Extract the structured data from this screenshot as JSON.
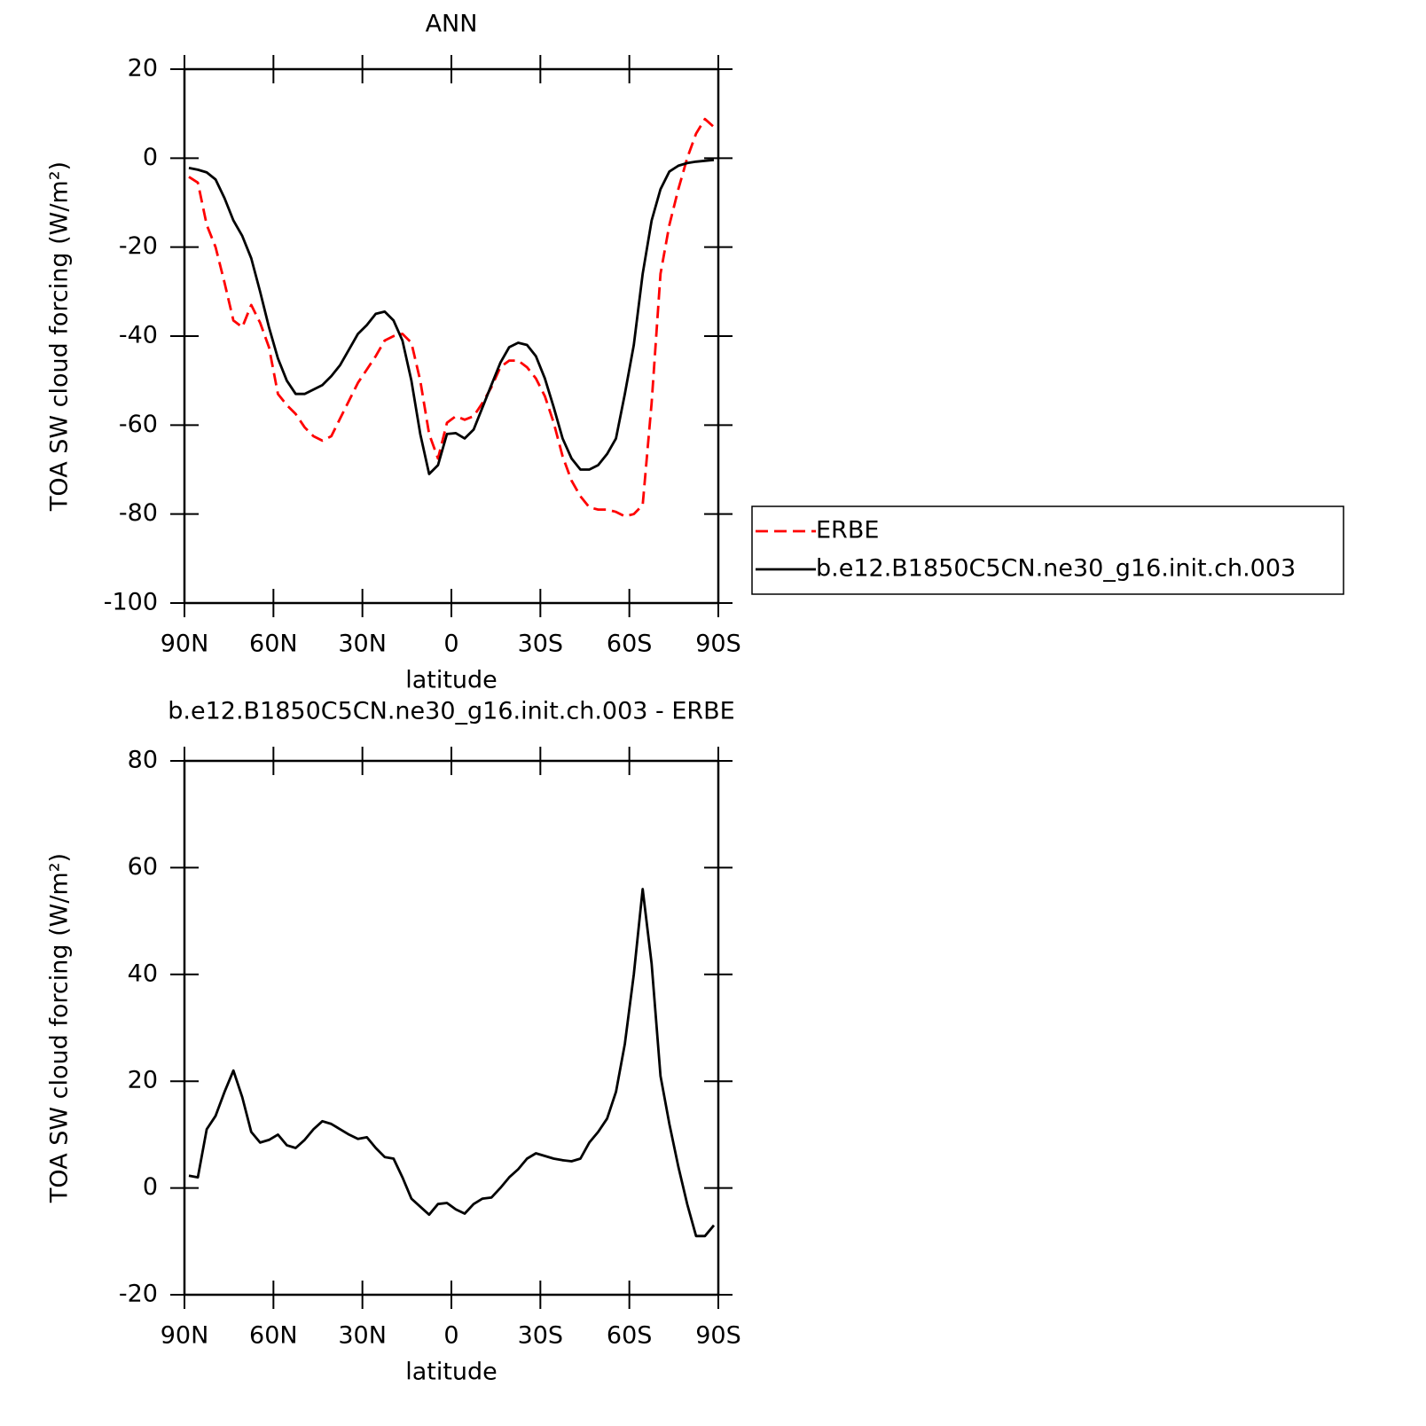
{
  "chart_data": [
    {
      "type": "line",
      "title": "ANN",
      "xlabel": "latitude",
      "ylabel": "TOA SW cloud forcing (W/m²)",
      "x": [
        88.5,
        85.5,
        82.5,
        79.5,
        76.5,
        73.5,
        70.5,
        67.5,
        64.5,
        61.5,
        58.5,
        55.5,
        52.5,
        49.5,
        46.5,
        43.5,
        40.5,
        37.5,
        34.5,
        31.5,
        28.5,
        25.5,
        22.5,
        19.5,
        16.5,
        13.5,
        10.5,
        7.5,
        4.5,
        1.5,
        -1.5,
        -4.5,
        -7.5,
        -10.5,
        -13.5,
        -16.5,
        -19.5,
        -22.5,
        -25.5,
        -28.5,
        -31.5,
        -34.5,
        -37.5,
        -40.5,
        -43.5,
        -46.5,
        -49.5,
        -52.5,
        -55.5,
        -58.5,
        -61.5,
        -64.5,
        -67.5,
        -70.5,
        -73.5,
        -76.5,
        -79.5,
        -82.5,
        -85.5,
        -88.5
      ],
      "series": [
        {
          "name": "ERBE",
          "color": "#ff0000",
          "dash": true,
          "values": [
            -4.2,
            -5.5,
            -15,
            -20,
            -28,
            -36.5,
            -38,
            -33,
            -37,
            -42.5,
            -53,
            -55.5,
            -57.5,
            -60.5,
            -62.5,
            -63.5,
            -62.5,
            -58.5,
            -54.5,
            -50.5,
            -47.5,
            -44.5,
            -41,
            -40,
            -39.5,
            -41.5,
            -50,
            -62,
            -67.5,
            -59.5,
            -58,
            -58.8,
            -58,
            -55,
            -51.5,
            -47,
            -45.5,
            -45.5,
            -47,
            -49.5,
            -53.5,
            -59.5,
            -67,
            -72.5,
            -76,
            -78.5,
            -79,
            -79,
            -79.5,
            -80.5,
            -80,
            -78,
            -55,
            -26,
            -15,
            -7,
            0,
            5.5,
            8.8,
            7
          ]
        },
        {
          "name": "b.e12.B1850C5CN.ne30_g16.init.ch.003",
          "color": "#000000",
          "dash": false,
          "values": [
            -2.2,
            -2.6,
            -3.2,
            -4.8,
            -9,
            -14,
            -17.5,
            -22.5,
            -30,
            -38,
            -45,
            -50,
            -53,
            -53,
            -52,
            -51,
            -49,
            -46.5,
            -43,
            -39.5,
            -37.5,
            -35,
            -34.5,
            -36.5,
            -41,
            -50,
            -62,
            -71,
            -69,
            -62,
            -61.8,
            -63,
            -61,
            -56,
            -51,
            -46,
            -42.5,
            -41.5,
            -42,
            -44.5,
            -49.5,
            -56,
            -63,
            -67.5,
            -70,
            -70,
            -69,
            -66.5,
            -63,
            -53,
            -42,
            -26,
            -14,
            -7,
            -3,
            -1.7,
            -1.1,
            -0.8,
            -0.6,
            -0.4
          ]
        }
      ],
      "xlim": [
        90,
        -90
      ],
      "xticks": [
        {
          "value": 90,
          "label": "90N"
        },
        {
          "value": 60,
          "label": "60N"
        },
        {
          "value": 30,
          "label": "30N"
        },
        0,
        {
          "value": -30,
          "label": "30S"
        },
        {
          "value": -60,
          "label": "60S"
        },
        {
          "value": -90,
          "label": "90S"
        }
      ],
      "ylim": [
        -100,
        20
      ],
      "yticks": [
        -100,
        -80,
        -60,
        -40,
        -20,
        0,
        20
      ],
      "legend": "right"
    },
    {
      "type": "line",
      "title": "b.e12.B1850C5CN.ne30_g16.init.ch.003 - ERBE",
      "xlabel": "latitude",
      "ylabel": "TOA SW cloud forcing (W/m²)",
      "x": [
        88.5,
        85.5,
        82.5,
        79.5,
        76.5,
        73.5,
        70.5,
        67.5,
        64.5,
        61.5,
        58.5,
        55.5,
        52.5,
        49.5,
        46.5,
        43.5,
        40.5,
        37.5,
        34.5,
        31.5,
        28.5,
        25.5,
        22.5,
        19.5,
        16.5,
        13.5,
        10.5,
        7.5,
        4.5,
        1.5,
        -1.5,
        -4.5,
        -7.5,
        -10.5,
        -13.5,
        -16.5,
        -19.5,
        -22.5,
        -25.5,
        -28.5,
        -31.5,
        -34.5,
        -37.5,
        -40.5,
        -43.5,
        -46.5,
        -49.5,
        -52.5,
        -55.5,
        -58.5,
        -61.5,
        -64.5,
        -67.5,
        -70.5,
        -73.5,
        -76.5,
        -79.5,
        -82.5,
        -85.5,
        -88.5
      ],
      "series": [
        {
          "color": "#000000",
          "dash": false,
          "values": [
            2.3,
            2,
            11,
            13.5,
            18,
            22,
            17,
            10.5,
            8.5,
            9,
            10,
            8,
            7.5,
            9,
            11,
            12.5,
            12,
            11,
            10,
            9.2,
            9.5,
            7.5,
            5.8,
            5.5,
            2,
            -2,
            -3.5,
            -5,
            -3,
            -2.8,
            -4,
            -4.8,
            -3,
            -2,
            -1.8,
            0,
            2,
            3.5,
            5.5,
            6.5,
            6,
            5.5,
            5.2,
            5,
            5.5,
            8.5,
            10.5,
            13,
            18,
            27,
            40,
            56,
            42,
            21,
            12,
            4,
            -3,
            -9,
            -9,
            -7
          ]
        }
      ],
      "xlim": [
        90,
        -90
      ],
      "xticks": [
        {
          "value": 90,
          "label": "90N"
        },
        {
          "value": 60,
          "label": "60N"
        },
        {
          "value": 30,
          "label": "30N"
        },
        0,
        {
          "value": -30,
          "label": "30S"
        },
        {
          "value": -60,
          "label": "60S"
        },
        {
          "value": -90,
          "label": "90S"
        }
      ],
      "ylim": [
        -20,
        80
      ],
      "yticks": [
        -20,
        0,
        20,
        40,
        60,
        80
      ]
    }
  ]
}
